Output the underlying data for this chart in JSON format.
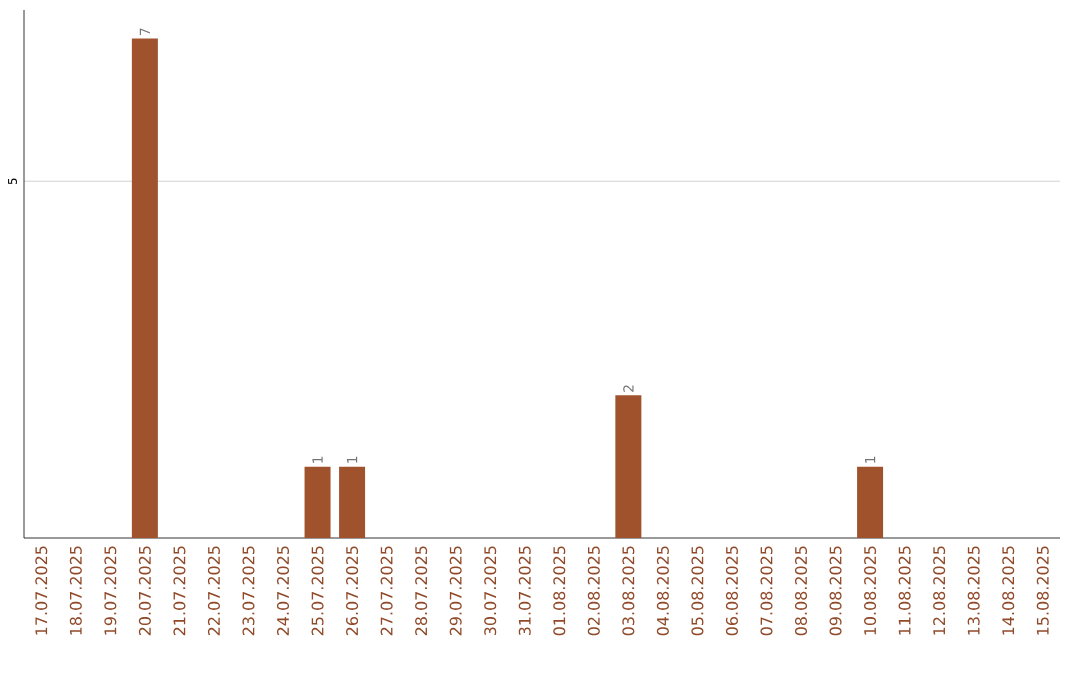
{
  "chart_data": {
    "type": "bar",
    "categories": [
      "17.07.2025",
      "18.07.2025",
      "19.07.2025",
      "20.07.2025",
      "21.07.2025",
      "22.07.2025",
      "23.07.2025",
      "24.07.2025",
      "25.07.2025",
      "26.07.2025",
      "27.07.2025",
      "28.07.2025",
      "29.07.2025",
      "30.07.2025",
      "31.07.2025",
      "01.08.2025",
      "02.08.2025",
      "03.08.2025",
      "04.08.2025",
      "05.08.2025",
      "06.08.2025",
      "07.08.2025",
      "08.08.2025",
      "09.08.2025",
      "10.08.2025",
      "11.08.2025",
      "12.08.2025",
      "13.08.2025",
      "14.08.2025",
      "15.08.2025"
    ],
    "values": [
      0,
      0,
      0,
      7,
      0,
      0,
      0,
      0,
      1,
      1,
      0,
      0,
      0,
      0,
      0,
      0,
      0,
      2,
      0,
      0,
      0,
      0,
      0,
      0,
      1,
      0,
      0,
      0,
      0,
      0
    ],
    "value_labels": [
      null,
      null,
      null,
      "7",
      null,
      null,
      null,
      null,
      "1",
      "1",
      null,
      null,
      null,
      null,
      null,
      null,
      null,
      "2",
      null,
      null,
      null,
      null,
      null,
      null,
      "1",
      null,
      null,
      null,
      null,
      null
    ],
    "color": "#a0522d",
    "ylim": [
      0,
      7.4
    ],
    "yticks": [
      5
    ],
    "grid": "y"
  }
}
